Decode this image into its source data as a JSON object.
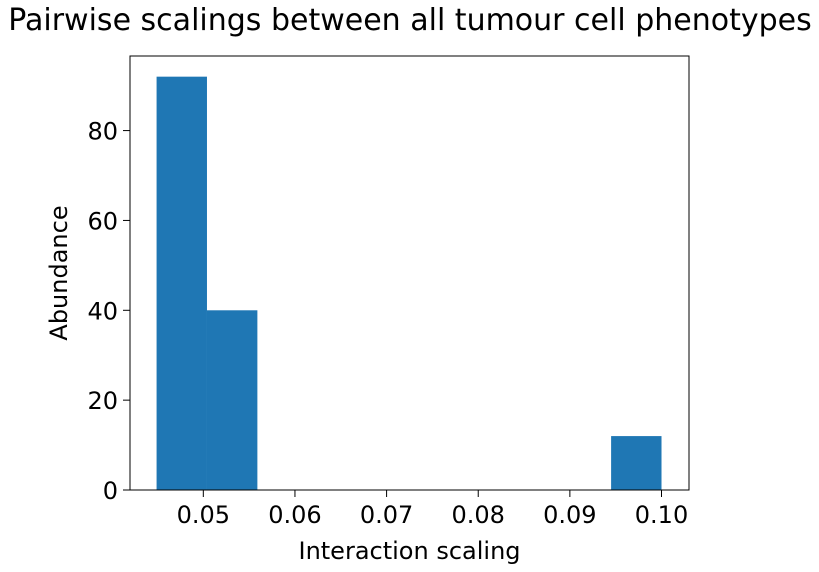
{
  "chart_data": {
    "type": "bar",
    "title": "Pairwise scalings between all tumour cell phenotypes",
    "xlabel": "Interaction scaling",
    "ylabel": "Abundance",
    "xlim": [
      0.042,
      0.103
    ],
    "ylim": [
      0,
      96.6
    ],
    "xticks": [
      0.05,
      0.06,
      0.07,
      0.08,
      0.09,
      0.1
    ],
    "xtick_labels": [
      "0.05",
      "0.06",
      "0.07",
      "0.08",
      "0.09",
      "0.10"
    ],
    "yticks": [
      0,
      20,
      40,
      60,
      80
    ],
    "ytick_labels": [
      "0",
      "20",
      "40",
      "60",
      "80"
    ],
    "bin_edges": [
      0.0449,
      0.0504,
      0.0559,
      0.0614,
      0.0669,
      0.0725,
      0.078,
      0.0835,
      0.089,
      0.0945,
      0.1
    ],
    "values": [
      92,
      40,
      0,
      0,
      0,
      0,
      0,
      0,
      0,
      12
    ],
    "bar_color": "#1f77b4",
    "grid": false,
    "legend": "none"
  }
}
